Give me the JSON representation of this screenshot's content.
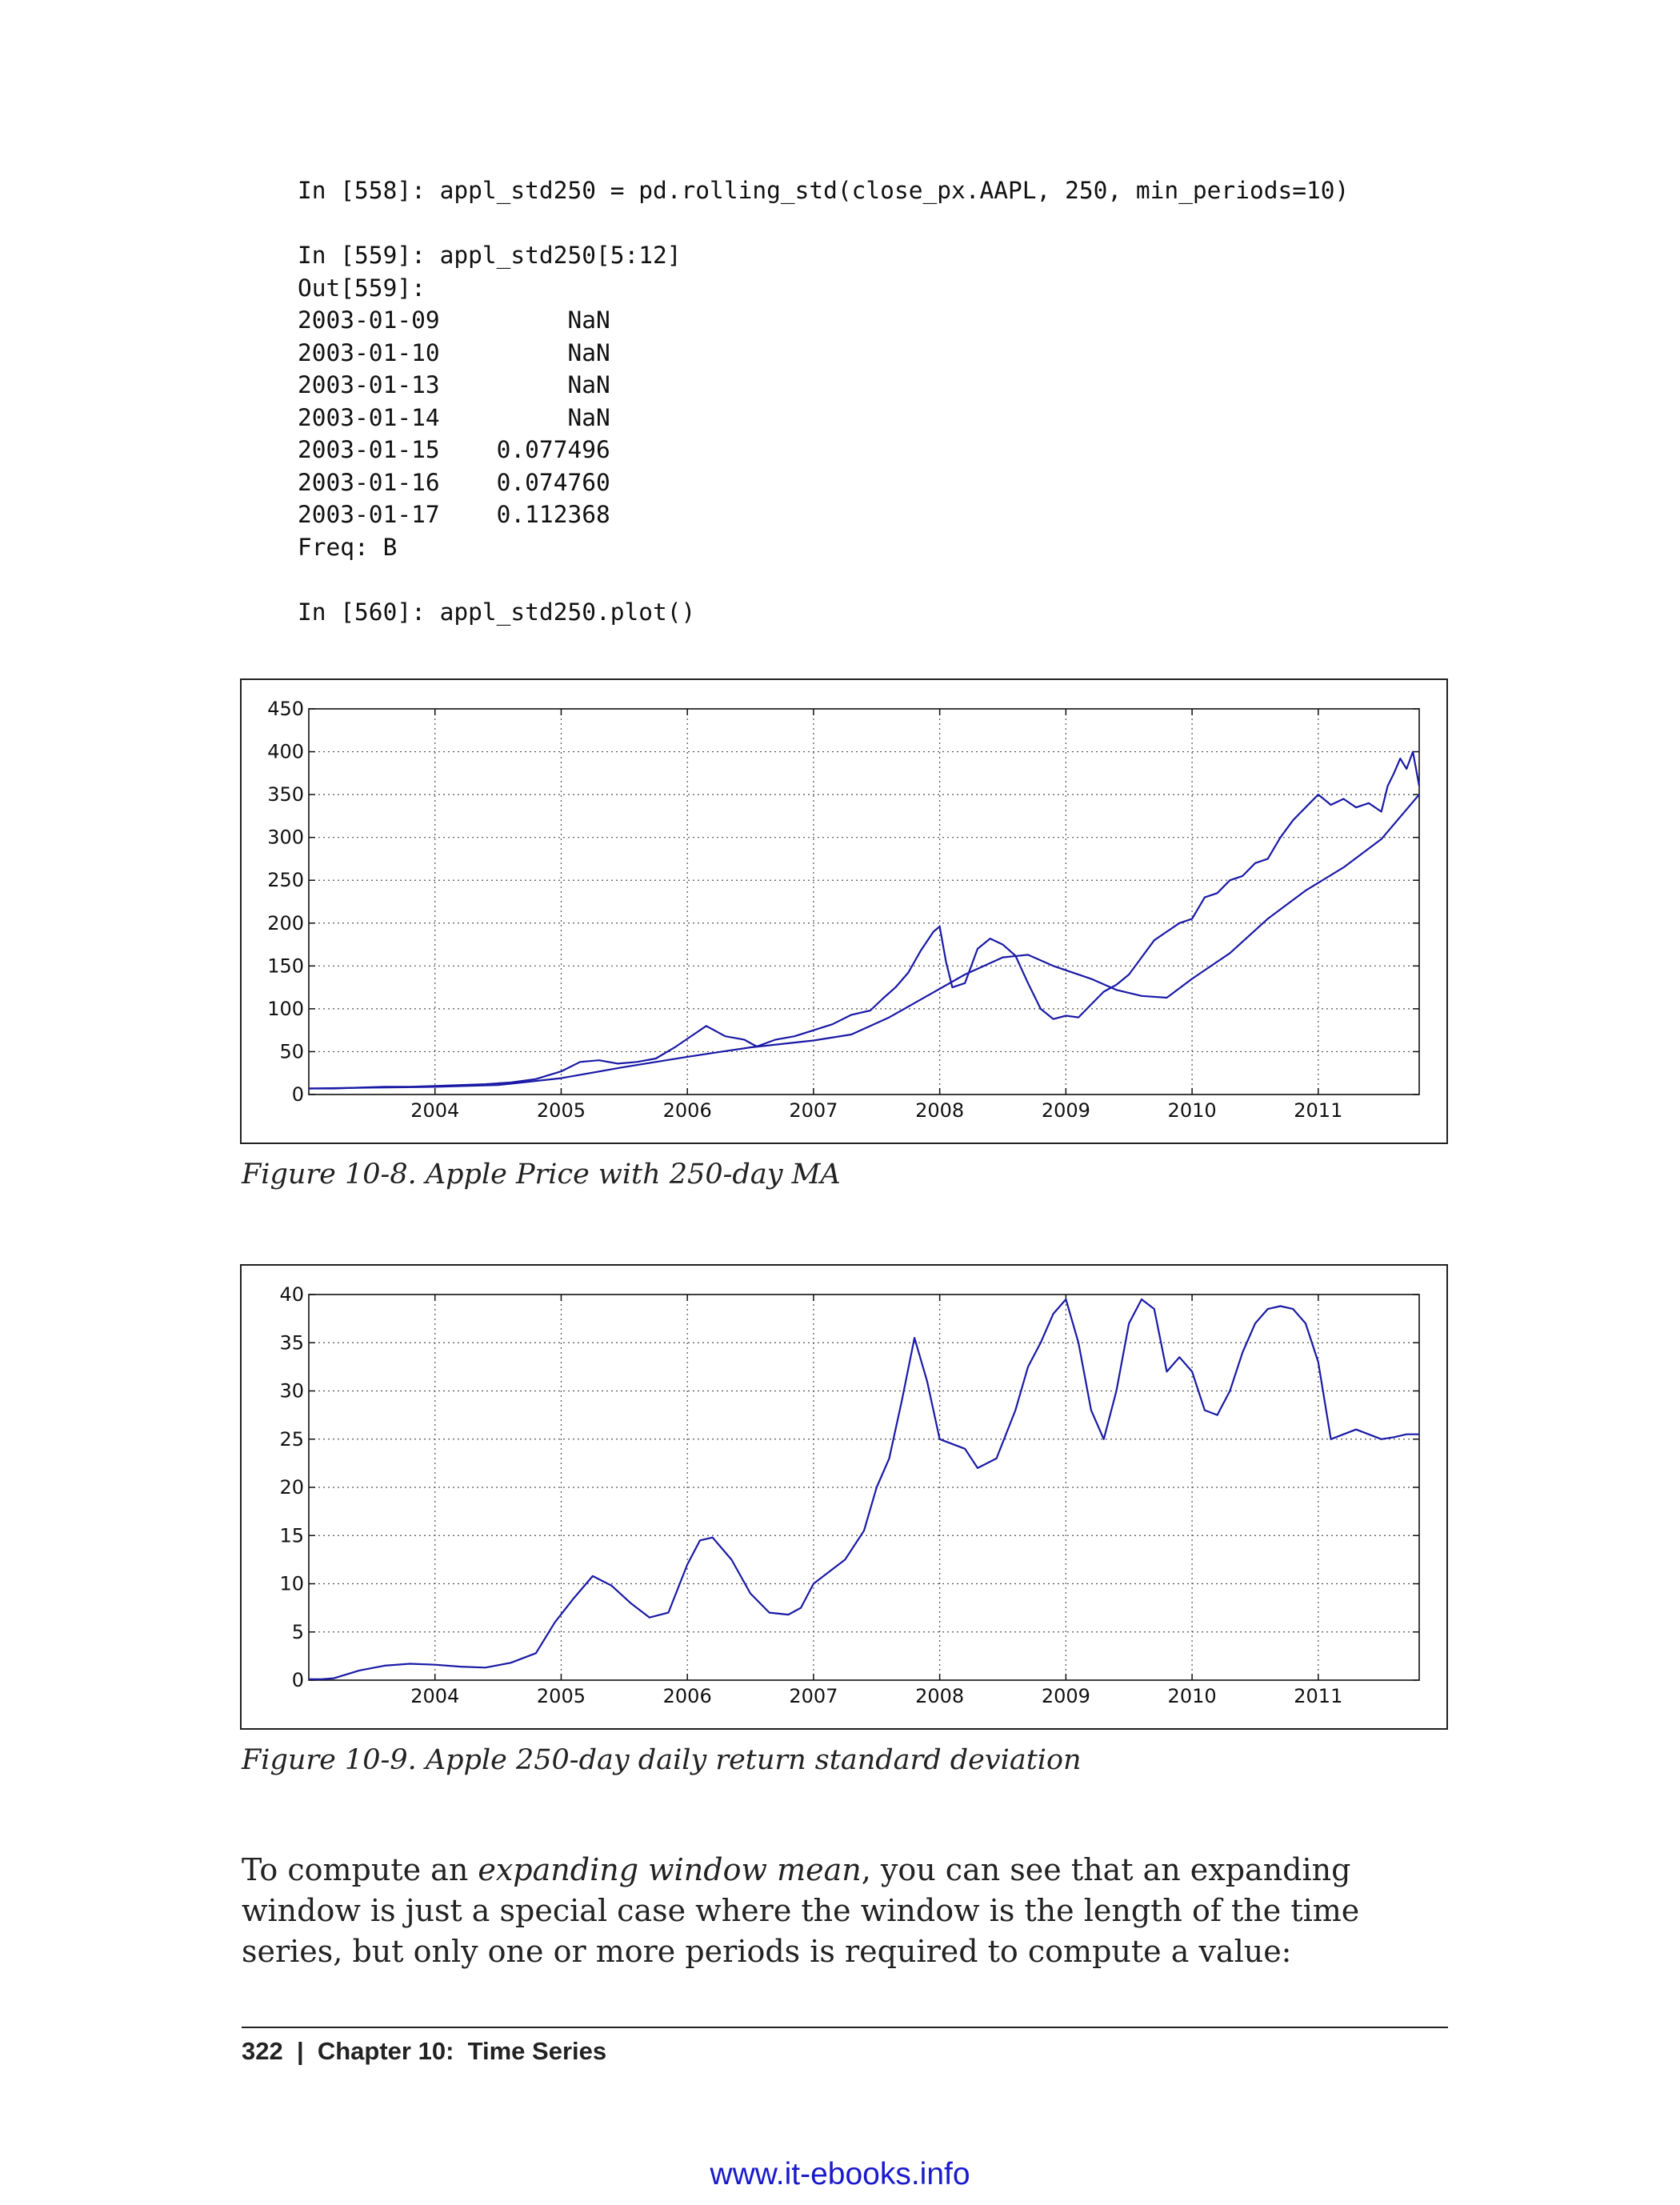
{
  "code": {
    "lines": [
      "In [558]: appl_std250 = pd.rolling_std(close_px.AAPL, 250, min_periods=10)",
      "",
      "In [559]: appl_std250[5:12]",
      "Out[559]:",
      "2003-01-09         NaN",
      "2003-01-10         NaN",
      "2003-01-13         NaN",
      "2003-01-14         NaN",
      "2003-01-15    0.077496",
      "2003-01-16    0.074760",
      "2003-01-17    0.112368",
      "Freq: B",
      "",
      "In [560]: appl_std250.plot()"
    ]
  },
  "figures": [
    {
      "caption": "Figure 10-8. Apple Price with 250-day MA"
    },
    {
      "caption": "Figure 10-9. Apple 250-day daily return standard deviation"
    }
  ],
  "chart_data": [
    {
      "type": "line",
      "title": "",
      "xlabel": "",
      "ylabel": "",
      "x_ticks": [
        "2004",
        "2005",
        "2006",
        "2007",
        "2008",
        "2009",
        "2010",
        "2011"
      ],
      "y_ticks": [
        0,
        50,
        100,
        150,
        200,
        250,
        300,
        350,
        400,
        450
      ],
      "xlim": [
        2003.0,
        2011.8
      ],
      "ylim": [
        0,
        450
      ],
      "grid": true,
      "color": "#1a1aa6",
      "series": [
        {
          "x": [
            2003.0,
            2003.2,
            2003.4,
            2003.6,
            2003.8,
            2004.0,
            2004.2,
            2004.4,
            2004.6,
            2004.8,
            2005.0,
            2005.15,
            2005.3,
            2005.45,
            2005.6,
            2005.75,
            2005.9,
            2006.05,
            2006.15,
            2006.3,
            2006.45,
            2006.55,
            2006.7,
            2006.85,
            2007.0,
            2007.15,
            2007.3,
            2007.45,
            2007.55,
            2007.65,
            2007.75,
            2007.85,
            2007.95,
            2008.0,
            2008.05,
            2008.1,
            2008.2,
            2008.3,
            2008.4,
            2008.5,
            2008.6,
            2008.7,
            2008.8,
            2008.9,
            2009.0,
            2009.1,
            2009.2,
            2009.3,
            2009.4,
            2009.5,
            2009.6,
            2009.7,
            2009.8,
            2009.9,
            2010.0,
            2010.1,
            2010.2,
            2010.3,
            2010.4,
            2010.5,
            2010.6,
            2010.7,
            2010.8,
            2010.9,
            2011.0,
            2011.1,
            2011.2,
            2011.3,
            2011.4,
            2011.5,
            2011.55,
            2011.6,
            2011.65,
            2011.7,
            2011.75,
            2011.8
          ],
          "y": [
            7,
            7,
            8,
            9,
            9,
            10,
            11,
            12,
            14,
            18,
            27,
            38,
            40,
            36,
            38,
            42,
            55,
            70,
            80,
            68,
            64,
            56,
            64,
            68,
            75,
            82,
            93,
            98,
            112,
            125,
            142,
            168,
            190,
            196,
            155,
            125,
            130,
            170,
            182,
            175,
            162,
            130,
            100,
            88,
            92,
            90,
            105,
            120,
            128,
            140,
            160,
            180,
            190,
            200,
            205,
            230,
            235,
            250,
            255,
            270,
            275,
            300,
            320,
            335,
            350,
            338,
            345,
            335,
            340,
            330,
            360,
            375,
            392,
            380,
            400,
            360
          ]
        },
        {
          "x": [
            2003.0,
            2003.5,
            2004.0,
            2004.5,
            2005.0,
            2005.5,
            2006.0,
            2006.5,
            2007.0,
            2007.3,
            2007.6,
            2007.9,
            2008.2,
            2008.5,
            2008.7,
            2008.9,
            2009.2,
            2009.4,
            2009.6,
            2009.8,
            2010.0,
            2010.3,
            2010.6,
            2010.9,
            2011.2,
            2011.5,
            2011.8
          ],
          "y": [
            7,
            8,
            9,
            11,
            19,
            32,
            44,
            55,
            63,
            70,
            90,
            115,
            140,
            160,
            163,
            150,
            135,
            122,
            115,
            113,
            135,
            165,
            205,
            238,
            265,
            298,
            350
          ]
        }
      ]
    },
    {
      "type": "line",
      "title": "",
      "xlabel": "",
      "ylabel": "",
      "x_ticks": [
        "2004",
        "2005",
        "2006",
        "2007",
        "2008",
        "2009",
        "2010",
        "2011"
      ],
      "y_ticks": [
        0,
        5,
        10,
        15,
        20,
        25,
        30,
        35,
        40
      ],
      "xlim": [
        2003.0,
        2011.8
      ],
      "ylim": [
        0,
        40
      ],
      "grid": true,
      "color": "#1a1aa6",
      "series": [
        {
          "x": [
            2003.0,
            2003.1,
            2003.2,
            2003.4,
            2003.6,
            2003.8,
            2004.0,
            2004.2,
            2004.4,
            2004.6,
            2004.8,
            2004.95,
            2005.1,
            2005.25,
            2005.4,
            2005.55,
            2005.7,
            2005.85,
            2006.0,
            2006.1,
            2006.2,
            2006.35,
            2006.5,
            2006.65,
            2006.8,
            2006.9,
            2007.0,
            2007.1,
            2007.25,
            2007.4,
            2007.5,
            2007.6,
            2007.7,
            2007.8,
            2007.9,
            2008.0,
            2008.1,
            2008.2,
            2008.3,
            2008.45,
            2008.6,
            2008.7,
            2008.8,
            2008.9,
            2009.0,
            2009.1,
            2009.2,
            2009.3,
            2009.4,
            2009.5,
            2009.6,
            2009.7,
            2009.8,
            2009.9,
            2010.0,
            2010.1,
            2010.2,
            2010.3,
            2010.4,
            2010.5,
            2010.6,
            2010.7,
            2010.8,
            2010.9,
            2011.0,
            2011.1,
            2011.2,
            2011.3,
            2011.4,
            2011.5,
            2011.6,
            2011.7,
            2011.8
          ],
          "y": [
            0.1,
            0.1,
            0.2,
            1.0,
            1.5,
            1.7,
            1.6,
            1.4,
            1.3,
            1.8,
            2.8,
            6.0,
            8.5,
            10.8,
            9.8,
            8.0,
            6.5,
            7.0,
            12.0,
            14.5,
            14.8,
            12.5,
            9.0,
            7.0,
            6.8,
            7.5,
            10.0,
            11.0,
            12.5,
            15.5,
            20.0,
            23.0,
            29.0,
            35.5,
            31.0,
            25.0,
            24.5,
            24.0,
            22.0,
            23.0,
            28.0,
            32.5,
            35.0,
            38.0,
            39.5,
            35.0,
            28.0,
            25.0,
            30.0,
            37.0,
            39.5,
            38.5,
            32.0,
            33.5,
            32.0,
            28.0,
            27.5,
            30.0,
            34.0,
            37.0,
            38.5,
            38.8,
            38.5,
            37.0,
            33.0,
            25.0,
            25.5,
            26.0,
            25.5,
            25.0,
            25.2,
            25.5,
            25.5
          ]
        }
      ]
    }
  ],
  "prose": {
    "part1": "To compute an ",
    "emphasis": "expanding window mean",
    "part2": ", you can see that an expanding window is just a special case where the window is the length of the time series, but only one or more periods is required to compute a value:"
  },
  "footer": {
    "text": "322  |  Chapter 10:  Time Series"
  },
  "url": {
    "text": "www.it-ebooks.info",
    "color": "#1a1acc"
  }
}
